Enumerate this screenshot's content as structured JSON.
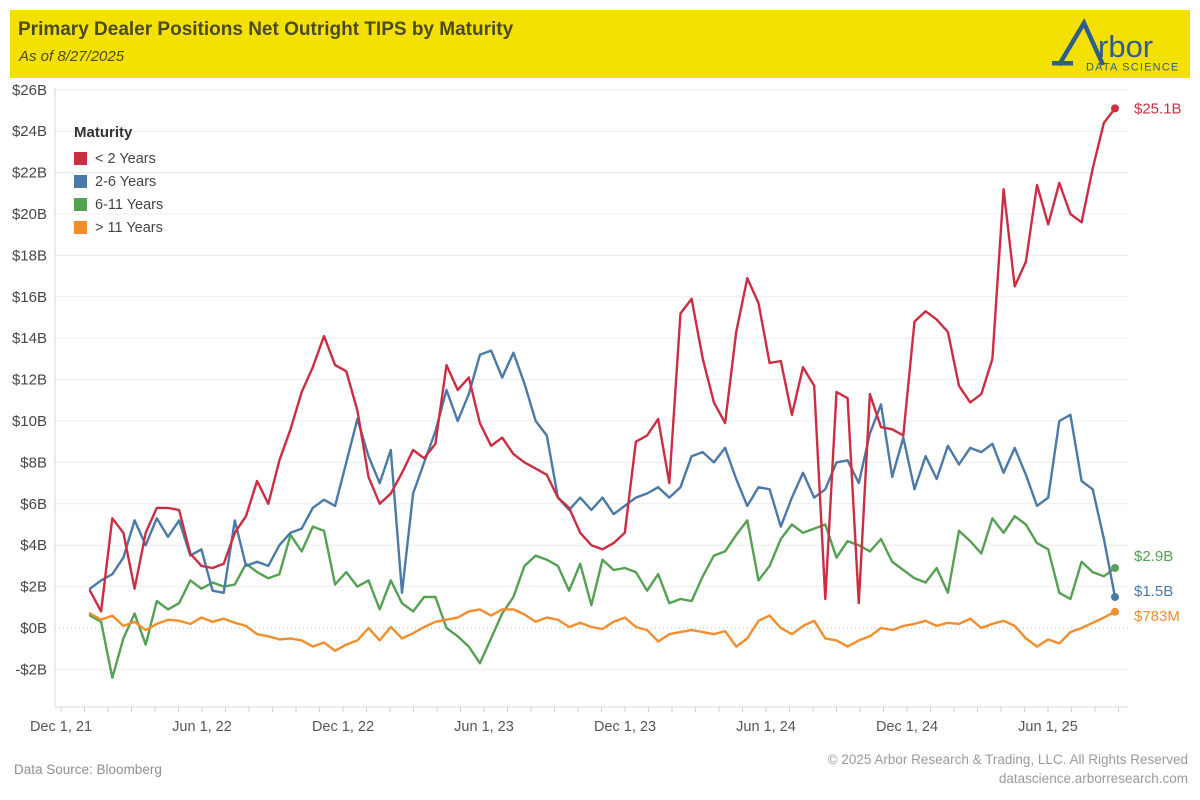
{
  "header": {
    "title": "Primary Dealer Positions Net Outright TIPS by Maturity",
    "subtitle": "As of 8/27/2025",
    "logo": {
      "name": "rbor",
      "tagline": "DATA SCIENCE"
    }
  },
  "legend": {
    "title": "Maturity",
    "items": [
      {
        "label": "< 2 Years",
        "color": "#cc2d41"
      },
      {
        "label": "2-6 Years",
        "color": "#4b79a8"
      },
      {
        "label": "6-11 Years",
        "color": "#55a154"
      },
      {
        "label": "> 11 Years",
        "color": "#f28e2c"
      }
    ]
  },
  "y_axis": {
    "tick_labels": [
      "$26B",
      "$24B",
      "$22B",
      "$20B",
      "$18B",
      "$16B",
      "$14B",
      "$12B",
      "$10B",
      "$8B",
      "$6B",
      "$4B",
      "$2B",
      "$0B",
      "-$2B"
    ],
    "tick_values": [
      26,
      24,
      22,
      20,
      18,
      16,
      14,
      12,
      10,
      8,
      6,
      4,
      2,
      0,
      -2
    ]
  },
  "x_axis": {
    "tick_labels": [
      "Dec 1, 21",
      "Jun 1, 22",
      "Dec 1, 22",
      "Jun 1, 23",
      "Dec 1, 23",
      "Jun 1, 24",
      "Dec 1, 24",
      "Jun 1, 25"
    ]
  },
  "end_labels": [
    {
      "text": "$25.1B",
      "color": "#cc2d41",
      "value": 25.1
    },
    {
      "text": "$2.9B",
      "color": "#55a154",
      "value": 2.9
    },
    {
      "text": "$1.5B",
      "color": "#4b79a8",
      "value": 1.5
    },
    {
      "text": "$783M",
      "color": "#f28e2c",
      "value": 0.783
    }
  ],
  "footer": {
    "source": "Data Source: Bloomberg",
    "copyright": "© 2025 Arbor Research & Trading, LLC. All Rights Reserved",
    "website": "datascience.arborresearch.com"
  },
  "chart_data": {
    "type": "line",
    "title": "Primary Dealer Positions Net Outright TIPS by Maturity",
    "as_of": "8/27/2025",
    "unit": "USD billions",
    "x_start": "2021-12-29",
    "x_end": "2025-08-27",
    "x_tick_labels": [
      "Dec 1, 21",
      "Jun 1, 22",
      "Dec 1, 22",
      "Jun 1, 23",
      "Dec 1, 23",
      "Jun 1, 24",
      "Dec 1, 24",
      "Jun 1, 25"
    ],
    "ylim": [
      -2,
      26
    ],
    "y_tick_step": 2,
    "grid": "horizontal",
    "legend_position": "top-left-inside",
    "series": [
      {
        "name": "< 2 Years",
        "color": "#cc2d41",
        "end_label": "$25.1B",
        "values": [
          1.8,
          0.8,
          5.3,
          4.6,
          1.9,
          4.6,
          5.8,
          5.8,
          5.7,
          3.6,
          3.0,
          2.9,
          3.1,
          4.6,
          5.4,
          7.1,
          6.0,
          8.1,
          9.6,
          11.4,
          12.6,
          14.1,
          12.7,
          12.4,
          10.5,
          7.3,
          6.0,
          6.5,
          7.5,
          8.6,
          8.2,
          8.9,
          12.7,
          11.5,
          12.1,
          9.9,
          8.8,
          9.2,
          8.4,
          8.0,
          7.7,
          7.4,
          6.3,
          5.8,
          4.6,
          4.0,
          3.8,
          4.1,
          4.6,
          9.0,
          9.3,
          10.1,
          7.0,
          15.2,
          15.9,
          13.0,
          10.9,
          9.9,
          14.3,
          16.9,
          15.7,
          12.8,
          12.9,
          10.3,
          12.6,
          11.7,
          1.4,
          11.4,
          11.1,
          1.2,
          11.3,
          9.7,
          9.6,
          9.3,
          14.8,
          15.3,
          14.9,
          14.3,
          11.7,
          10.9,
          11.3,
          13.0,
          21.2,
          16.5,
          17.7,
          21.4,
          19.5,
          21.5,
          20.0,
          19.6,
          22.2,
          24.4,
          25.1
        ]
      },
      {
        "name": "2-6 Years",
        "color": "#4b79a8",
        "end_label": "$1.5B",
        "values": [
          1.9,
          2.3,
          2.6,
          3.4,
          5.2,
          4.0,
          5.3,
          4.4,
          5.2,
          3.5,
          3.8,
          1.8,
          1.7,
          5.2,
          3.0,
          3.2,
          3.0,
          4.0,
          4.6,
          4.8,
          5.8,
          6.2,
          5.9,
          8.0,
          10.1,
          8.3,
          7.0,
          8.6,
          1.7,
          6.5,
          8.0,
          9.5,
          11.5,
          10.0,
          11.3,
          13.2,
          13.4,
          12.1,
          13.3,
          11.8,
          10.0,
          9.3,
          6.3,
          5.7,
          6.3,
          5.7,
          6.3,
          5.5,
          5.9,
          6.3,
          6.5,
          6.8,
          6.3,
          6.8,
          8.3,
          8.5,
          8.0,
          8.7,
          7.2,
          5.9,
          6.8,
          6.7,
          4.9,
          6.3,
          7.5,
          6.3,
          6.7,
          8.0,
          8.1,
          7.0,
          9.4,
          10.8,
          7.3,
          9.2,
          6.7,
          8.3,
          7.2,
          8.8,
          7.9,
          8.7,
          8.5,
          8.9,
          7.5,
          8.7,
          7.4,
          5.9,
          6.3,
          10.0,
          10.3,
          7.1,
          6.7,
          4.3,
          1.5
        ]
      },
      {
        "name": "6-11 Years",
        "color": "#55a154",
        "end_label": "$2.9B",
        "values": [
          0.6,
          0.3,
          -2.4,
          -0.5,
          0.7,
          -0.8,
          1.3,
          0.9,
          1.2,
          2.3,
          1.9,
          2.2,
          2.0,
          2.1,
          3.1,
          2.7,
          2.4,
          2.6,
          4.5,
          3.7,
          4.9,
          4.7,
          2.1,
          2.7,
          2.0,
          2.3,
          0.9,
          2.3,
          1.2,
          0.8,
          1.5,
          1.5,
          0.0,
          -0.4,
          -0.9,
          -1.7,
          -0.5,
          0.7,
          1.5,
          3.0,
          3.5,
          3.3,
          3.0,
          1.8,
          3.1,
          1.1,
          3.3,
          2.8,
          2.9,
          2.7,
          1.8,
          2.6,
          1.2,
          1.4,
          1.3,
          2.5,
          3.5,
          3.7,
          4.5,
          5.2,
          2.3,
          3.0,
          4.3,
          5.0,
          4.6,
          4.8,
          5.0,
          3.4,
          4.2,
          4.0,
          3.7,
          4.3,
          3.2,
          2.8,
          2.4,
          2.2,
          2.9,
          1.7,
          4.7,
          4.2,
          3.6,
          5.3,
          4.6,
          5.4,
          5.0,
          4.1,
          3.8,
          1.7,
          1.4,
          3.2,
          2.7,
          2.5,
          2.9
        ]
      },
      {
        "name": "> 11 Years",
        "color": "#f28e2c",
        "end_label": "$783M",
        "values": [
          0.7,
          0.4,
          0.6,
          0.1,
          0.3,
          -0.1,
          0.2,
          0.4,
          0.35,
          0.2,
          0.5,
          0.3,
          0.45,
          0.25,
          0.1,
          -0.3,
          -0.4,
          -0.55,
          -0.5,
          -0.6,
          -0.9,
          -0.7,
          -1.1,
          -0.8,
          -0.6,
          0.0,
          -0.6,
          0.05,
          -0.5,
          -0.25,
          0.05,
          0.3,
          0.4,
          0.5,
          0.8,
          0.9,
          0.6,
          0.9,
          0.9,
          0.65,
          0.3,
          0.5,
          0.4,
          0.05,
          0.25,
          0.05,
          -0.05,
          0.3,
          0.5,
          0.05,
          -0.1,
          -0.65,
          -0.3,
          -0.2,
          -0.1,
          -0.2,
          -0.3,
          -0.15,
          -0.9,
          -0.5,
          0.35,
          0.6,
          0.0,
          -0.3,
          0.1,
          0.35,
          -0.5,
          -0.6,
          -0.9,
          -0.6,
          -0.4,
          0.0,
          -0.1,
          0.1,
          0.2,
          0.35,
          0.1,
          0.25,
          0.2,
          0.45,
          0.0,
          0.2,
          0.35,
          0.1,
          -0.5,
          -0.9,
          -0.55,
          -0.75,
          -0.2,
          0.0,
          0.25,
          0.5,
          0.783
        ]
      }
    ]
  }
}
